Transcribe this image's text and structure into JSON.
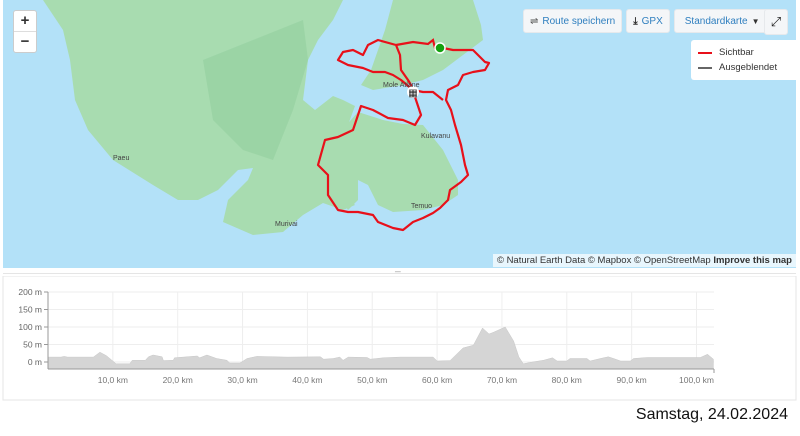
{
  "map": {
    "zoom_in": "+",
    "zoom_out": "−",
    "toolbar": {
      "save_route": "Route speichern",
      "gpx": "GPX",
      "map_style": "Standardkarte",
      "fullscreen_icon": "expand-icon"
    },
    "legend": [
      {
        "label": "Sichtbar",
        "color": "#e8101a"
      },
      {
        "label": "Ausgeblendet",
        "color": "#666666"
      }
    ],
    "places": [
      "Paeu",
      "Murivai",
      "Temuo",
      "Kulavanu",
      "Mole Atlane"
    ],
    "attribution": {
      "text": "© Natural Earth Data © Mapbox © OpenStreetMap",
      "link": "Improve this map"
    },
    "route_color": "#e8101a",
    "start_color": "#13a10e"
  },
  "chart_data": {
    "type": "area",
    "xlabel": "",
    "ylabel": "",
    "xlim": [
      0,
      102.7
    ],
    "ylim": [
      -20,
      200
    ],
    "grid": true,
    "yticks": [
      "200 m",
      "150 m",
      "100 m",
      "50 m",
      "0 m"
    ],
    "ytick_values": [
      200,
      150,
      100,
      50,
      0
    ],
    "xticks": [
      "10,0 km",
      "20,0 km",
      "30,0 km",
      "40,0 km",
      "50,0 km",
      "60,0 km",
      "70,0 km",
      "80,0 km",
      "90,0 km",
      "100,0 km"
    ],
    "xtick_values": [
      10,
      20,
      30,
      40,
      50,
      60,
      70,
      80,
      90,
      100
    ],
    "x": [
      0,
      0.3,
      2,
      2.5,
      3,
      7,
      8,
      9,
      10,
      10.5,
      12.6,
      13,
      15,
      15.5,
      16.2,
      17.6,
      17.8,
      19.3,
      19.5,
      23,
      23.4,
      24.5,
      26,
      27.6,
      28,
      29.6,
      30.7,
      32.2,
      36.9,
      42,
      42.5,
      44,
      45,
      45.5,
      46.3,
      49.2,
      49.7,
      51.7,
      54.3,
      59.4,
      60,
      62,
      64,
      65.6,
      67,
      68,
      68.7,
      70.5,
      71.8,
      72.6,
      73.3,
      74.7,
      76.4,
      77.8,
      78.5,
      80,
      80.5,
      83.1,
      83.6,
      85.2,
      86.4,
      87.2,
      88.3,
      89.8,
      90.3,
      92.4,
      100.6,
      101.7,
      102.6
    ],
    "values": [
      14,
      14,
      14,
      16,
      14,
      14,
      28,
      18,
      3,
      -5,
      -5,
      5,
      5,
      15,
      20,
      15,
      4,
      5,
      12,
      17,
      12,
      20,
      10,
      5,
      -3,
      -3,
      10,
      16,
      14,
      15,
      8,
      10,
      14,
      5,
      14,
      13,
      8,
      12,
      14,
      14,
      3,
      4,
      40,
      48,
      97,
      80,
      85,
      100,
      60,
      15,
      -5,
      0,
      5,
      12,
      3,
      3,
      10,
      10,
      3,
      10,
      15,
      10,
      3,
      3,
      10,
      13,
      13,
      22,
      8
    ],
    "fill_color": "#d5d5d5"
  },
  "footer": {
    "date": "Samstag, 24.02.2024"
  }
}
